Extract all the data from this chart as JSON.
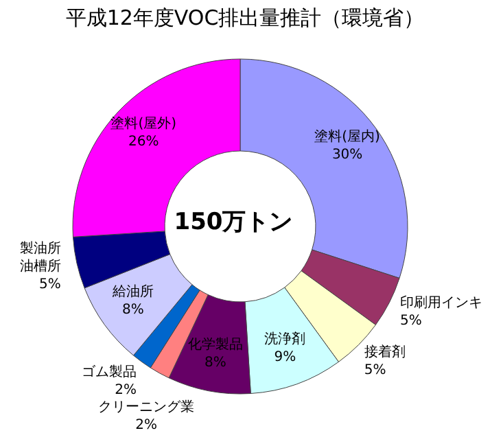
{
  "chart_data": {
    "type": "donut",
    "title": "平成12年度VOC排出量推計（環境省）",
    "categories": [
      "塗料(屋内)",
      "印刷用インキ",
      "接着剤",
      "洗浄剤",
      "化学製品",
      "クリーニング業",
      "ゴム製品",
      "給油所",
      "製油所油槽所",
      "塗料(屋外)"
    ],
    "values": [
      30,
      5,
      5,
      9,
      8,
      2,
      2,
      8,
      5,
      26
    ],
    "value_labels": [
      "30%",
      "5%",
      "5%",
      "9%",
      "8%",
      "2%",
      "2%",
      "8%",
      "5%",
      "26%"
    ],
    "colors": [
      "#9999ff",
      "#993366",
      "#ffffcc",
      "#ccffff",
      "#660066",
      "#ff8080",
      "#0066cc",
      "#ccccff",
      "#000080",
      "#ff00ff"
    ],
    "annotations": [
      "150万トン"
    ],
    "legend": false
  }
}
